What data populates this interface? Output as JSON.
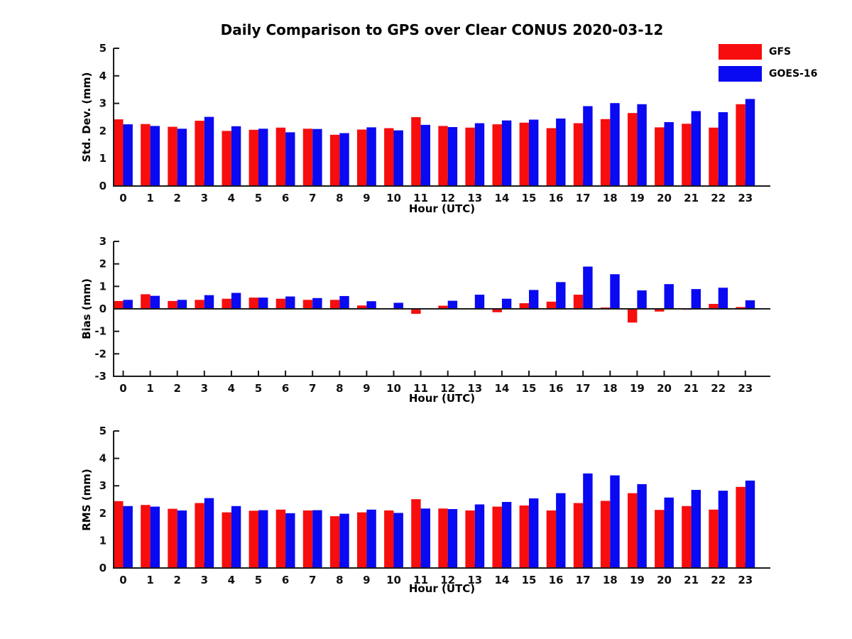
{
  "title": "Daily Comparison to GPS over Clear CONUS 2020-03-12",
  "legend": {
    "position": "top-right-outside",
    "entries": [
      {
        "label": "GFS",
        "color": "#f70d0d"
      },
      {
        "label": "GOES-16",
        "color": "#0909f2"
      }
    ]
  },
  "chart_data": [
    {
      "id": "std_dev",
      "type": "bar",
      "ylabel": "Std. Dev. (mm)",
      "xlabel": "Hour (UTC)",
      "ylim": [
        0,
        5
      ],
      "yticks": [
        0,
        1,
        2,
        3,
        4,
        5
      ],
      "grid": false,
      "categories": [
        "0",
        "1",
        "2",
        "3",
        "4",
        "5",
        "6",
        "7",
        "8",
        "9",
        "10",
        "11",
        "12",
        "13",
        "14",
        "15",
        "16",
        "17",
        "18",
        "19",
        "20",
        "21",
        "22",
        "23"
      ],
      "series": [
        {
          "name": "GFS",
          "color": "#f70d0d",
          "values": [
            2.42,
            2.25,
            2.15,
            2.37,
            2.0,
            2.04,
            2.12,
            2.08,
            1.86,
            2.05,
            2.1,
            2.5,
            2.18,
            2.12,
            2.24,
            2.3,
            2.1,
            2.28,
            2.43,
            2.65,
            2.13,
            2.26,
            2.12,
            2.97
          ]
        },
        {
          "name": "GOES-16",
          "color": "#0909f2",
          "values": [
            2.24,
            2.18,
            2.08,
            2.51,
            2.17,
            2.08,
            1.95,
            2.07,
            1.92,
            2.13,
            2.02,
            2.22,
            2.14,
            2.28,
            2.38,
            2.41,
            2.45,
            2.9,
            3.01,
            2.97,
            2.32,
            2.72,
            2.68,
            3.16
          ]
        }
      ]
    },
    {
      "id": "bias",
      "type": "bar",
      "ylabel": "Bias (mm)",
      "xlabel": "Hour (UTC)",
      "ylim": [
        -3,
        3
      ],
      "yticks": [
        -3,
        -2,
        -1,
        0,
        1,
        2,
        3
      ],
      "grid": false,
      "categories": [
        "0",
        "1",
        "2",
        "3",
        "4",
        "5",
        "6",
        "7",
        "8",
        "9",
        "10",
        "11",
        "12",
        "13",
        "14",
        "15",
        "16",
        "17",
        "18",
        "19",
        "20",
        "21",
        "22",
        "23"
      ],
      "series": [
        {
          "name": "GFS",
          "color": "#f70d0d",
          "values": [
            0.35,
            0.65,
            0.35,
            0.4,
            0.45,
            0.5,
            0.45,
            0.4,
            0.4,
            0.15,
            0.02,
            -0.22,
            0.14,
            0.02,
            -0.15,
            0.25,
            0.32,
            0.63,
            0.06,
            -0.61,
            -0.12,
            -0.04,
            0.22,
            0.08
          ]
        },
        {
          "name": "GOES-16",
          "color": "#0909f2",
          "values": [
            0.4,
            0.58,
            0.4,
            0.61,
            0.71,
            0.5,
            0.55,
            0.48,
            0.57,
            0.34,
            0.27,
            0.03,
            0.36,
            0.63,
            0.45,
            0.84,
            1.19,
            1.88,
            1.54,
            0.82,
            1.1,
            0.88,
            0.94,
            0.38
          ]
        }
      ]
    },
    {
      "id": "rms",
      "type": "bar",
      "ylabel": "RMS (mm)",
      "xlabel": "Hour (UTC)",
      "ylim": [
        0,
        5
      ],
      "yticks": [
        0,
        1,
        2,
        3,
        4,
        5
      ],
      "grid": false,
      "categories": [
        "0",
        "1",
        "2",
        "3",
        "4",
        "5",
        "6",
        "7",
        "8",
        "9",
        "10",
        "11",
        "12",
        "13",
        "14",
        "15",
        "16",
        "17",
        "18",
        "19",
        "20",
        "21",
        "22",
        "23"
      ],
      "series": [
        {
          "name": "GFS",
          "color": "#f70d0d",
          "values": [
            2.44,
            2.3,
            2.16,
            2.37,
            2.03,
            2.09,
            2.13,
            2.1,
            1.89,
            2.03,
            2.1,
            2.51,
            2.17,
            2.1,
            2.24,
            2.28,
            2.1,
            2.37,
            2.45,
            2.73,
            2.12,
            2.26,
            2.13,
            2.96
          ]
        },
        {
          "name": "GOES-16",
          "color": "#0909f2",
          "values": [
            2.26,
            2.24,
            2.1,
            2.55,
            2.26,
            2.11,
            2.0,
            2.11,
            1.98,
            2.13,
            2.01,
            2.17,
            2.15,
            2.32,
            2.41,
            2.54,
            2.73,
            3.45,
            3.38,
            3.06,
            2.57,
            2.85,
            2.82,
            3.19
          ]
        }
      ]
    }
  ]
}
